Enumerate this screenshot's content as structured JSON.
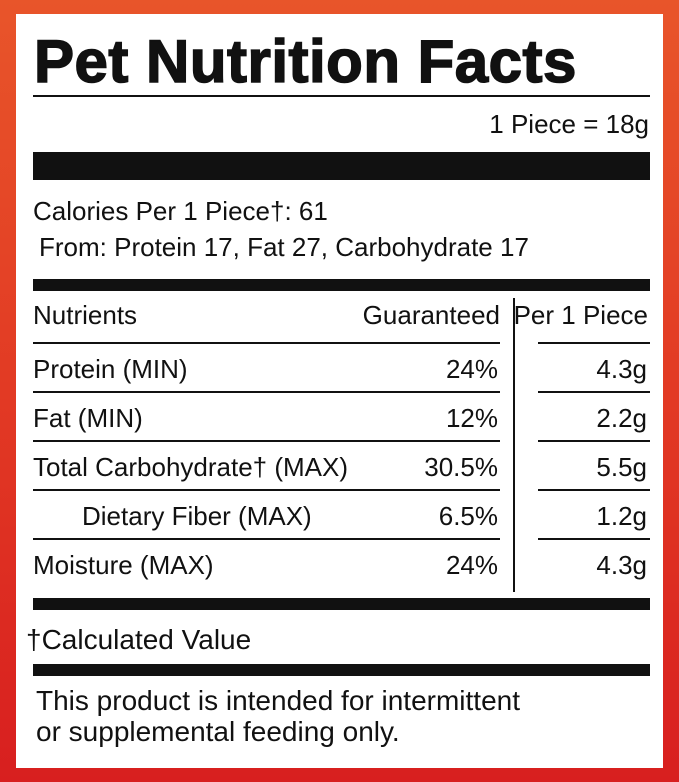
{
  "header": {
    "title": "Pet Nutrition Facts",
    "serving": "1 Piece = 18g"
  },
  "calories": {
    "total": "Calories Per 1 Piece†: 61",
    "from": "From: Protein 17, Fat 27, Carbohydrate 17"
  },
  "table": {
    "headers": [
      "Nutrients",
      "Guaranteed",
      "Per 1 Piece"
    ],
    "rows": [
      [
        "Protein (MIN)",
        "24%",
        "4.3g"
      ],
      [
        "Fat (MIN)",
        "12%",
        "2.2g"
      ],
      [
        "Total Carbohydrate† (MAX)",
        "30.5%",
        "5.5g"
      ],
      [
        "Dietary Fiber (MAX)",
        "6.5%",
        "1.2g"
      ],
      [
        "Moisture (MAX)",
        "24%",
        "4.3g"
      ]
    ]
  },
  "footnote": "†Calculated Value",
  "disclaimer": [
    "This product is intended for intermittent",
    "or supplemental feeding only."
  ]
}
